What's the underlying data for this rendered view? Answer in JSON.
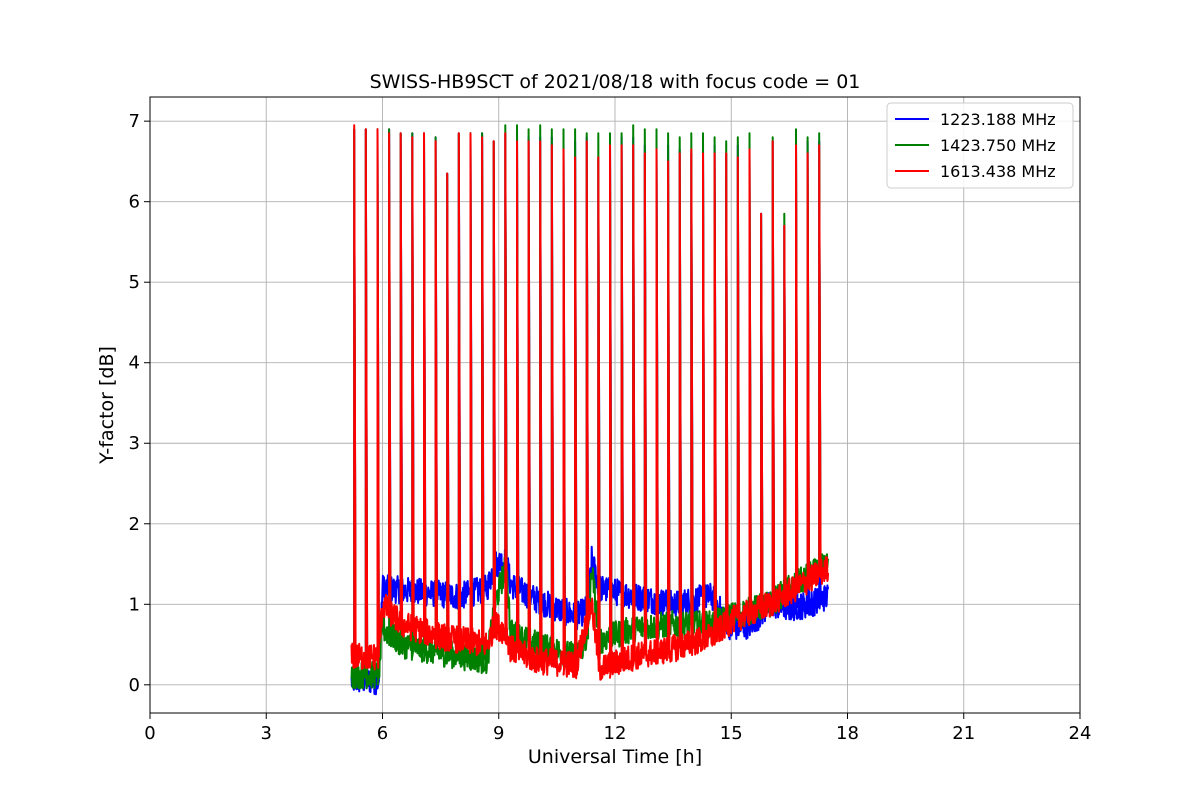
{
  "chart_data": {
    "type": "line",
    "title": "SWISS-HB9SCT of 2021/08/18 with focus code = 01",
    "xlabel": "Universal Time [h]",
    "ylabel": "Y-factor [dB]",
    "xlim": [
      0,
      24
    ],
    "ylim": [
      -0.35,
      7.3
    ],
    "xticks": [
      0,
      3,
      6,
      9,
      12,
      15,
      18,
      21,
      24
    ],
    "yticks": [
      0,
      1,
      2,
      3,
      4,
      5,
      6,
      7
    ],
    "grid": true,
    "legend_position": "top-right",
    "spike_times": [
      5.27,
      5.57,
      5.87,
      6.17,
      6.47,
      6.77,
      7.07,
      7.37,
      7.67,
      7.97,
      8.27,
      8.57,
      8.87,
      9.17,
      9.47,
      9.77,
      10.07,
      10.37,
      10.67,
      10.97,
      11.27,
      11.57,
      11.87,
      12.17,
      12.47,
      12.77,
      13.07,
      13.37,
      13.67,
      13.97,
      14.27,
      14.57,
      14.87,
      15.17,
      15.47,
      15.77,
      16.07,
      16.37,
      16.67,
      16.97,
      17.27
    ],
    "series": [
      {
        "name": "1223.188 MHz",
        "color": "#0000ff",
        "baseline": [
          [
            5.2,
            0.05
          ],
          [
            5.9,
            0.05
          ],
          [
            6.0,
            1.2
          ],
          [
            7.0,
            1.15
          ],
          [
            8.0,
            1.1
          ],
          [
            8.7,
            1.2
          ],
          [
            8.9,
            1.5
          ],
          [
            9.2,
            1.55
          ],
          [
            9.3,
            1.25
          ],
          [
            10.0,
            1.05
          ],
          [
            11.0,
            0.85
          ],
          [
            11.3,
            0.95
          ],
          [
            11.4,
            1.55
          ],
          [
            11.6,
            1.2
          ],
          [
            12.5,
            1.1
          ],
          [
            13.5,
            1.0
          ],
          [
            14.5,
            1.1
          ],
          [
            15.0,
            0.7
          ],
          [
            15.5,
            0.75
          ],
          [
            16.0,
            1.0
          ],
          [
            16.5,
            0.95
          ],
          [
            17.0,
            1.0
          ],
          [
            17.5,
            1.1
          ]
        ],
        "peaks": [
          6.9,
          6.9,
          6.9,
          6.9,
          6.85,
          6.85,
          6.85,
          6.8,
          6.35,
          6.85,
          6.85,
          6.85,
          6.75,
          6.85,
          6.9,
          6.8,
          6.8,
          6.8,
          6.75,
          6.75,
          6.8,
          6.55,
          6.75,
          6.8,
          6.8,
          6.7,
          6.75,
          6.7,
          6.65,
          6.6,
          6.65,
          6.7,
          6.6,
          6.7,
          6.6,
          5.85,
          6.75,
          5.7,
          6.75,
          6.75,
          6.75
        ]
      },
      {
        "name": "1423.750 MHz",
        "color": "#008000",
        "baseline": [
          [
            5.2,
            0.12
          ],
          [
            5.9,
            0.12
          ],
          [
            6.0,
            0.7
          ],
          [
            6.5,
            0.5
          ],
          [
            7.5,
            0.4
          ],
          [
            8.7,
            0.3
          ],
          [
            8.9,
            1.0
          ],
          [
            9.2,
            1.5
          ],
          [
            9.3,
            0.65
          ],
          [
            10.0,
            0.5
          ],
          [
            11.0,
            0.35
          ],
          [
            11.3,
            0.6
          ],
          [
            11.4,
            1.45
          ],
          [
            11.6,
            0.55
          ],
          [
            12.5,
            0.7
          ],
          [
            13.5,
            0.75
          ],
          [
            14.5,
            0.75
          ],
          [
            15.0,
            0.85
          ],
          [
            16.0,
            1.0
          ],
          [
            16.5,
            1.2
          ],
          [
            17.0,
            1.35
          ],
          [
            17.5,
            1.5
          ]
        ],
        "peaks": [
          6.9,
          6.9,
          6.9,
          6.9,
          6.85,
          6.85,
          6.85,
          6.8,
          6.35,
          6.85,
          6.85,
          6.85,
          6.75,
          6.95,
          6.95,
          6.9,
          6.95,
          6.9,
          6.9,
          6.9,
          6.85,
          6.85,
          6.85,
          6.85,
          6.95,
          6.9,
          6.9,
          6.85,
          6.8,
          6.85,
          6.85,
          6.8,
          6.75,
          6.8,
          6.85,
          5.85,
          6.8,
          5.85,
          6.9,
          6.8,
          6.85
        ]
      },
      {
        "name": "1613.438 MHz",
        "color": "#ff0000",
        "baseline": [
          [
            5.2,
            0.35
          ],
          [
            5.9,
            0.35
          ],
          [
            6.0,
            1.0
          ],
          [
            6.5,
            0.75
          ],
          [
            7.5,
            0.6
          ],
          [
            8.7,
            0.5
          ],
          [
            8.9,
            0.75
          ],
          [
            9.2,
            0.65
          ],
          [
            9.3,
            0.45
          ],
          [
            10.0,
            0.3
          ],
          [
            11.0,
            0.25
          ],
          [
            11.3,
            0.85
          ],
          [
            11.4,
            1.0
          ],
          [
            11.6,
            0.2
          ],
          [
            12.5,
            0.35
          ],
          [
            13.5,
            0.45
          ],
          [
            14.5,
            0.6
          ],
          [
            15.0,
            0.8
          ],
          [
            16.0,
            1.0
          ],
          [
            16.5,
            1.15
          ],
          [
            17.0,
            1.3
          ],
          [
            17.5,
            1.45
          ]
        ],
        "peaks": [
          6.95,
          6.9,
          6.9,
          6.85,
          6.85,
          6.8,
          6.85,
          6.75,
          6.35,
          6.85,
          6.85,
          6.8,
          6.75,
          6.85,
          6.75,
          6.75,
          6.75,
          6.7,
          6.65,
          6.55,
          6.75,
          6.55,
          6.7,
          6.7,
          6.7,
          6.6,
          6.65,
          6.5,
          6.6,
          6.65,
          6.6,
          6.6,
          6.6,
          6.55,
          6.65,
          5.85,
          6.75,
          5.7,
          6.7,
          6.6,
          6.7
        ]
      }
    ]
  }
}
